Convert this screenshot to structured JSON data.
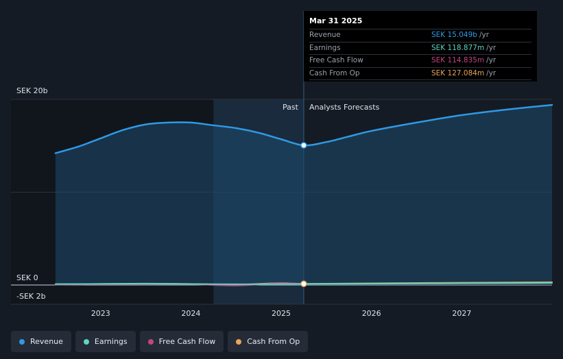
{
  "chart_data": {
    "type": "line",
    "currency": "SEK",
    "y_ticks": [
      {
        "label": "SEK 20b",
        "value": 20
      },
      {
        "label": "SEK 0",
        "value": 0
      },
      {
        "label": "-SEK 2b",
        "value": -2
      }
    ],
    "ylim": [
      -2,
      20
    ],
    "x_ticks": [
      {
        "label": "2023",
        "value": 2023.0
      },
      {
        "label": "2024",
        "value": 2024.0
      },
      {
        "label": "2025",
        "value": 2025.0
      },
      {
        "label": "2026",
        "value": 2026.0
      },
      {
        "label": "2027",
        "value": 2027.0
      }
    ],
    "xlim": [
      2022.25,
      2028.0
    ],
    "divider_x": 2025.25,
    "shade_start_x": 2024.25,
    "past_label": "Past",
    "forecast_label": "Analysts Forecasts",
    "series": [
      {
        "name": "Revenue",
        "color": "#2f9ae6",
        "x": [
          2022.5,
          2022.75,
          2023.0,
          2023.25,
          2023.5,
          2023.75,
          2024.0,
          2024.25,
          2024.5,
          2024.75,
          2025.0,
          2025.25,
          2025.5,
          2025.75,
          2026.0,
          2026.5,
          2027.0,
          2027.5,
          2028.0
        ],
        "y": [
          14.2,
          14.9,
          15.8,
          16.7,
          17.3,
          17.5,
          17.5,
          17.2,
          16.9,
          16.4,
          15.7,
          15.049,
          15.4,
          16.0,
          16.6,
          17.5,
          18.3,
          18.9,
          19.4
        ]
      },
      {
        "name": "Earnings",
        "color": "#5fd4c4",
        "x": [
          2022.5,
          2023.0,
          2023.5,
          2024.0,
          2024.5,
          2025.0,
          2025.25,
          2026.0,
          2027.0,
          2028.0
        ],
        "y": [
          0.1,
          0.12,
          0.14,
          0.1,
          0.08,
          0.11,
          0.118877,
          0.14,
          0.18,
          0.22
        ]
      },
      {
        "name": "Free Cash Flow",
        "color": "#c4457f",
        "x": [
          2022.5,
          2023.0,
          2023.5,
          2024.0,
          2024.5,
          2025.0,
          2025.25
        ],
        "y": [
          0.05,
          0.08,
          0.12,
          0.09,
          -0.06,
          0.2,
          0.114835
        ]
      },
      {
        "name": "Cash From Op",
        "color": "#e8a45c",
        "x": [
          2022.5,
          2023.0,
          2023.5,
          2024.0,
          2024.5,
          2025.0,
          2025.25,
          2026.0,
          2027.0,
          2028.0
        ],
        "y": [
          0.08,
          0.12,
          0.16,
          0.12,
          0.04,
          0.22,
          0.127084,
          0.18,
          0.25,
          0.3
        ]
      }
    ]
  },
  "tooltip": {
    "date": "Mar 31 2025",
    "rows": [
      {
        "label": "Revenue",
        "value": "SEK 15.049b",
        "unit": "/yr",
        "color": "#2f9ae6"
      },
      {
        "label": "Earnings",
        "value": "SEK 118.877m",
        "unit": "/yr",
        "color": "#5fd4c4"
      },
      {
        "label": "Free Cash Flow",
        "value": "SEK 114.835m",
        "unit": "/yr",
        "color": "#c4457f"
      },
      {
        "label": "Cash From Op",
        "value": "SEK 127.084m",
        "unit": "/yr",
        "color": "#e8a45c"
      }
    ]
  },
  "legend": [
    {
      "label": "Revenue",
      "color": "#2f9ae6"
    },
    {
      "label": "Earnings",
      "color": "#5fd4c4"
    },
    {
      "label": "Free Cash Flow",
      "color": "#c4457f"
    },
    {
      "label": "Cash From Op",
      "color": "#e8a45c"
    }
  ]
}
